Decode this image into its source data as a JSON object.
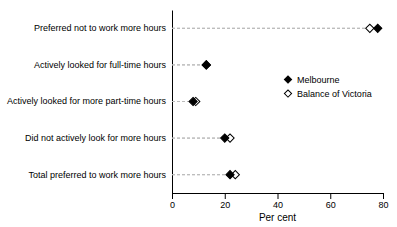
{
  "chart_data": {
    "type": "dot",
    "orientation": "horizontal",
    "categories": [
      "Total preferred to work more hours",
      "Did not actively look for more hours",
      "Actively looked for more part-time hours",
      "Actively looked for full-time hours",
      "Preferred not to work more hours"
    ],
    "series": [
      {
        "name": "Melbourne",
        "color": "#000000",
        "marker": "diamond",
        "values": [
          22,
          20,
          8,
          13,
          78
        ]
      },
      {
        "name": "Balance of Victoria",
        "color": "#000000",
        "marker": "open-diamond",
        "values": [
          24,
          22,
          9,
          13,
          75
        ]
      }
    ],
    "xlabel": "Per cent",
    "xlim": [
      0,
      80
    ],
    "xticks": [
      0,
      20,
      40,
      60,
      80
    ],
    "grid": false,
    "legend": "right"
  }
}
